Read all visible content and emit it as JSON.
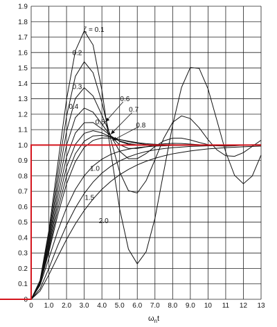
{
  "chart_data": {
    "type": "line",
    "title": "",
    "xlabel": "ωnt",
    "ylabel": "",
    "xlim": [
      0,
      13
    ],
    "ylim": [
      0,
      1.9
    ],
    "grid": true,
    "x_ticks": [
      "0",
      "1.0",
      "2.0",
      "3.0",
      "4.0",
      "5.0",
      "6.0",
      "7.0",
      "8.0",
      "9.0",
      "10",
      "11",
      "12",
      "13"
    ],
    "y_ticks": [
      "0",
      "0.1",
      "0.2",
      "0.3",
      "0.4",
      "0.5",
      "0.6",
      "0.7",
      "0.8",
      "0.9",
      "1.0",
      "1.1",
      "1.2",
      "1.3",
      "1.4",
      "1.5",
      "1.6",
      "1.7",
      "1.8",
      "1.9"
    ],
    "step_input": {
      "color": "#d4141c",
      "points": [
        [
          -1.8,
          0.0
        ],
        [
          0.0,
          0.0
        ],
        [
          0.0,
          1.0
        ],
        [
          13.0,
          1.0
        ]
      ]
    },
    "series": [
      {
        "zeta": 0.1,
        "points": [
          [
            0,
            0
          ],
          [
            0.5,
            0.122
          ],
          [
            1.0,
            0.446
          ],
          [
            1.5,
            0.874
          ],
          [
            2.0,
            1.295
          ],
          [
            2.5,
            1.611
          ],
          [
            3.0,
            1.74
          ],
          [
            3.5,
            1.649
          ],
          [
            4.0,
            1.355
          ],
          [
            4.5,
            0.956
          ],
          [
            5.0,
            0.588
          ],
          [
            5.5,
            0.325
          ],
          [
            6.0,
            0.23
          ],
          [
            6.5,
            0.308
          ],
          [
            7.0,
            0.525
          ],
          [
            7.5,
            0.829
          ],
          [
            8.0,
            1.129
          ],
          [
            8.5,
            1.373
          ],
          [
            9.0,
            1.503
          ],
          [
            9.5,
            1.497
          ],
          [
            10.0,
            1.365
          ],
          [
            10.5,
            1.161
          ],
          [
            11.0,
            0.955
          ],
          [
            11.5,
            0.804
          ],
          [
            12.0,
            0.749
          ],
          [
            12.5,
            0.799
          ],
          [
            13.0,
            0.935
          ]
        ]
      },
      {
        "zeta": 0.2,
        "points": [
          [
            0,
            0
          ],
          [
            0.5,
            0.118
          ],
          [
            1.0,
            0.422
          ],
          [
            1.5,
            0.815
          ],
          [
            2.0,
            1.186
          ],
          [
            2.5,
            1.446
          ],
          [
            3.0,
            1.54
          ],
          [
            3.5,
            1.469
          ],
          [
            4.0,
            1.277
          ],
          [
            4.5,
            1.037
          ],
          [
            5.0,
            0.827
          ],
          [
            5.5,
            0.704
          ],
          [
            6.0,
            0.689
          ],
          [
            6.5,
            0.769
          ],
          [
            7.0,
            0.905
          ],
          [
            7.5,
            1.045
          ],
          [
            8.0,
            1.147
          ],
          [
            8.5,
            1.189
          ],
          [
            9.0,
            1.172
          ],
          [
            9.5,
            1.112
          ],
          [
            10.0,
            1.035
          ],
          [
            10.5,
            0.969
          ],
          [
            11.0,
            0.931
          ],
          [
            11.5,
            0.927
          ],
          [
            12.0,
            0.951
          ],
          [
            12.5,
            0.991
          ],
          [
            13.0,
            1.031
          ]
        ]
      },
      {
        "zeta": 0.3,
        "points": [
          [
            0,
            0
          ],
          [
            0.5,
            0.115
          ],
          [
            1.0,
            0.4
          ],
          [
            1.5,
            0.76
          ],
          [
            2.0,
            1.088
          ],
          [
            2.5,
            1.302
          ],
          [
            3.0,
            1.372
          ],
          [
            3.5,
            1.318
          ],
          [
            4.0,
            1.194
          ],
          [
            4.5,
            1.06
          ],
          [
            5.0,
            0.96
          ],
          [
            5.5,
            0.912
          ],
          [
            6.0,
            0.912
          ],
          [
            6.5,
            0.945
          ],
          [
            7.0,
            0.99
          ],
          [
            7.5,
            1.027
          ],
          [
            8.0,
            1.045
          ],
          [
            8.5,
            1.045
          ],
          [
            9.0,
            1.033
          ],
          [
            9.5,
            1.017
          ],
          [
            10.0,
            1.003
          ],
          [
            10.5,
            0.995
          ],
          [
            11.0,
            0.993
          ],
          [
            11.5,
            0.995
          ],
          [
            12.0,
            0.999
          ],
          [
            12.5,
            1.002
          ],
          [
            13.0,
            1.003
          ]
        ]
      },
      {
        "zeta": 0.4,
        "points": [
          [
            0,
            0
          ],
          [
            0.5,
            0.111
          ],
          [
            1.0,
            0.378
          ],
          [
            1.5,
            0.71
          ],
          [
            2.0,
            1.0
          ],
          [
            2.5,
            1.178
          ],
          [
            3.0,
            1.24
          ],
          [
            3.5,
            1.213
          ],
          [
            4.0,
            1.136
          ],
          [
            4.5,
            1.057
          ],
          [
            5.0,
            1.002
          ],
          [
            5.5,
            0.978
          ],
          [
            6.0,
            0.978
          ],
          [
            6.5,
            0.988
          ],
          [
            7.0,
            1.0
          ],
          [
            7.5,
            1.008
          ],
          [
            8.0,
            1.011
          ],
          [
            8.5,
            1.01
          ],
          [
            9.0,
            1.006
          ],
          [
            9.5,
            1.002
          ],
          [
            10.0,
            1.0
          ],
          [
            10.5,
            0.999
          ],
          [
            11.0,
            0.999
          ],
          [
            11.5,
            1.0
          ],
          [
            12.0,
            1.0
          ],
          [
            12.5,
            1.0
          ],
          [
            13.0,
            1.0
          ]
        ]
      },
      {
        "zeta": 0.5,
        "points": [
          [
            0,
            0
          ],
          [
            0.5,
            0.107
          ],
          [
            1.0,
            0.358
          ],
          [
            1.5,
            0.663
          ],
          [
            2.0,
            0.923
          ],
          [
            2.5,
            1.078
          ],
          [
            3.0,
            1.145
          ],
          [
            3.5,
            1.146
          ],
          [
            4.0,
            1.105
          ],
          [
            4.5,
            1.06
          ],
          [
            5.0,
            1.024
          ],
          [
            5.5,
            1.005
          ],
          [
            6.0,
            0.999
          ],
          [
            6.5,
            0.999
          ],
          [
            7.0,
            1.001
          ],
          [
            7.5,
            1.002
          ],
          [
            8.0,
            1.002
          ],
          [
            8.5,
            1.001
          ],
          [
            9.0,
            1.0
          ],
          [
            10.0,
            1.0
          ],
          [
            11.0,
            1.0
          ],
          [
            12.0,
            1.0
          ],
          [
            13.0,
            1.0
          ]
        ]
      },
      {
        "zeta": 0.6,
        "points": [
          [
            0,
            0
          ],
          [
            0.5,
            0.104
          ],
          [
            1.0,
            0.34
          ],
          [
            1.5,
            0.62
          ],
          [
            2.0,
            0.858
          ],
          [
            2.5,
            1.005
          ],
          [
            3.0,
            1.076
          ],
          [
            3.5,
            1.093
          ],
          [
            4.0,
            1.079
          ],
          [
            4.5,
            1.052
          ],
          [
            5.0,
            1.027
          ],
          [
            5.5,
            1.01
          ],
          [
            6.0,
            1.001
          ],
          [
            6.5,
            0.998
          ],
          [
            7.0,
            0.998
          ],
          [
            7.5,
            0.999
          ],
          [
            8.0,
            1.0
          ],
          [
            9.0,
            1.0
          ],
          [
            10.0,
            1.0
          ],
          [
            11.0,
            1.0
          ],
          [
            12.0,
            1.0
          ],
          [
            13.0,
            1.0
          ]
        ]
      },
      {
        "zeta": 0.7,
        "points": [
          [
            0,
            0
          ],
          [
            0.5,
            0.1
          ],
          [
            1.0,
            0.321
          ],
          [
            1.5,
            0.58
          ],
          [
            2.0,
            0.799
          ],
          [
            2.5,
            0.944
          ],
          [
            3.0,
            1.025
          ],
          [
            3.5,
            1.059
          ],
          [
            4.0,
            1.063
          ],
          [
            4.5,
            1.052
          ],
          [
            5.0,
            1.036
          ],
          [
            5.5,
            1.022
          ],
          [
            6.0,
            1.011
          ],
          [
            6.5,
            1.004
          ],
          [
            7.0,
            1.001
          ],
          [
            7.5,
            0.999
          ],
          [
            8.0,
            0.999
          ],
          [
            9.0,
            1.0
          ],
          [
            10.0,
            1.0
          ],
          [
            11.0,
            1.0
          ],
          [
            12.0,
            1.0
          ],
          [
            13.0,
            1.0
          ]
        ]
      },
      {
        "zeta": 0.8,
        "points": [
          [
            0,
            0
          ],
          [
            0.5,
            0.097
          ],
          [
            1.0,
            0.305
          ],
          [
            1.5,
            0.545
          ],
          [
            2.0,
            0.748
          ],
          [
            2.5,
            0.893
          ],
          [
            3.0,
            0.985
          ],
          [
            3.5,
            1.03
          ],
          [
            4.0,
            1.046
          ],
          [
            4.5,
            1.045
          ],
          [
            5.0,
            1.036
          ],
          [
            5.5,
            1.025
          ],
          [
            6.0,
            1.016
          ],
          [
            6.5,
            1.009
          ],
          [
            7.0,
            1.005
          ],
          [
            7.5,
            1.002
          ],
          [
            8.0,
            1.001
          ],
          [
            9.0,
            1.0
          ],
          [
            10.0,
            1.0
          ],
          [
            11.0,
            1.0
          ],
          [
            12.0,
            1.0
          ],
          [
            13.0,
            1.0
          ]
        ]
      },
      {
        "zeta": 1.0,
        "points": [
          [
            0,
            0
          ],
          [
            0.5,
            0.09
          ],
          [
            1.0,
            0.264
          ],
          [
            1.5,
            0.442
          ],
          [
            2.0,
            0.594
          ],
          [
            2.5,
            0.713
          ],
          [
            3.0,
            0.801
          ],
          [
            3.5,
            0.864
          ],
          [
            4.0,
            0.908
          ],
          [
            4.5,
            0.939
          ],
          [
            5.0,
            0.96
          ],
          [
            5.5,
            0.973
          ],
          [
            6.0,
            0.983
          ],
          [
            6.5,
            0.989
          ],
          [
            7.0,
            0.993
          ],
          [
            7.5,
            0.995
          ],
          [
            8.0,
            0.997
          ],
          [
            9.0,
            0.999
          ],
          [
            10.0,
            1.0
          ],
          [
            11.0,
            1.0
          ],
          [
            12.0,
            1.0
          ],
          [
            13.0,
            1.0
          ]
        ]
      },
      {
        "zeta": 1.5,
        "points": [
          [
            0,
            0
          ],
          [
            0.5,
            0.067
          ],
          [
            1.0,
            0.2
          ],
          [
            1.5,
            0.348
          ],
          [
            2.0,
            0.48
          ],
          [
            2.5,
            0.593
          ],
          [
            3.0,
            0.686
          ],
          [
            3.5,
            0.76
          ],
          [
            4.0,
            0.818
          ],
          [
            4.5,
            0.862
          ],
          [
            5.0,
            0.897
          ],
          [
            5.5,
            0.923
          ],
          [
            6.0,
            0.943
          ],
          [
            6.5,
            0.958
          ],
          [
            7.0,
            0.969
          ],
          [
            7.5,
            0.977
          ],
          [
            8.0,
            0.983
          ],
          [
            9.0,
            0.991
          ],
          [
            10.0,
            0.995
          ],
          [
            11.0,
            0.997
          ],
          [
            12.0,
            0.999
          ],
          [
            13.0,
            0.999
          ]
        ]
      },
      {
        "zeta": 2.0,
        "points": [
          [
            0,
            0
          ],
          [
            0.5,
            0.053
          ],
          [
            1.0,
            0.158
          ],
          [
            1.5,
            0.275
          ],
          [
            2.0,
            0.388
          ],
          [
            2.5,
            0.489
          ],
          [
            3.0,
            0.576
          ],
          [
            3.5,
            0.65
          ],
          [
            4.0,
            0.713
          ],
          [
            4.5,
            0.764
          ],
          [
            5.0,
            0.807
          ],
          [
            5.5,
            0.842
          ],
          [
            6.0,
            0.871
          ],
          [
            6.5,
            0.895
          ],
          [
            7.0,
            0.914
          ],
          [
            7.5,
            0.93
          ],
          [
            8.0,
            0.943
          ],
          [
            9.0,
            0.962
          ],
          [
            10.0,
            0.975
          ],
          [
            11.0,
            0.983
          ],
          [
            12.0,
            0.989
          ],
          [
            13.0,
            0.993
          ]
        ]
      }
    ],
    "annotations": [
      {
        "text": "ζ = 0.1",
        "x": 3.55,
        "y": 1.75
      },
      {
        "text": "0.2",
        "x": 2.6,
        "y": 1.6
      },
      {
        "text": "0.3",
        "x": 2.6,
        "y": 1.38
      },
      {
        "text": "0.4",
        "x": 2.4,
        "y": 1.25
      },
      {
        "text": "0.5",
        "x": 3.9,
        "y": 1.15
      },
      {
        "text": "0.6",
        "x": 5.3,
        "y": 1.3
      },
      {
        "text": "0.7",
        "x": 5.8,
        "y": 1.23
      },
      {
        "text": "0.8",
        "x": 6.2,
        "y": 1.13
      },
      {
        "text": "1.0",
        "x": 3.6,
        "y": 0.85
      },
      {
        "text": "1.5",
        "x": 3.3,
        "y": 0.66
      },
      {
        "text": "2.0",
        "x": 4.1,
        "y": 0.51
      }
    ],
    "leader_lines": [
      {
        "from": [
          5.2,
          1.28
        ],
        "to": [
          4.2,
          1.15
        ]
      },
      {
        "from": [
          5.7,
          1.21
        ],
        "to": [
          4.5,
          1.07
        ]
      },
      {
        "from": [
          6.1,
          1.12
        ],
        "to": [
          4.6,
          1.03
        ]
      }
    ]
  }
}
